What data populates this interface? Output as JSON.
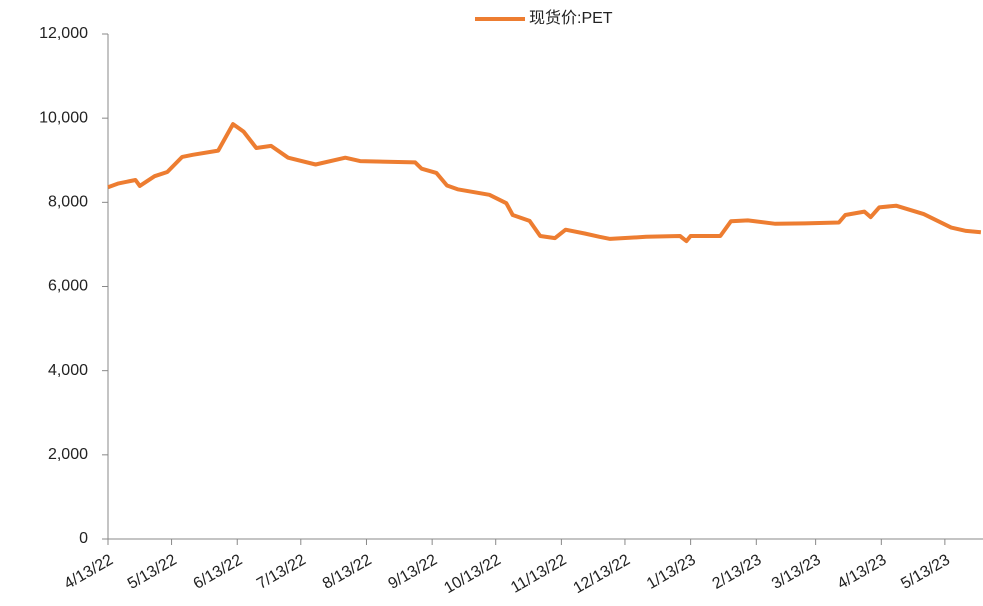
{
  "chart_data": {
    "type": "line",
    "x": [
      "2022-04-13",
      "2022-04-18",
      "2022-04-26",
      "2022-04-28",
      "2022-05-05",
      "2022-05-11",
      "2022-05-18",
      "2022-05-23",
      "2022-06-04",
      "2022-06-11",
      "2022-06-16",
      "2022-06-22",
      "2022-06-29",
      "2022-07-07",
      "2022-07-20",
      "2022-08-03",
      "2022-08-10",
      "2022-09-05",
      "2022-09-08",
      "2022-09-15",
      "2022-09-20",
      "2022-09-25",
      "2022-10-10",
      "2022-10-18",
      "2022-10-21",
      "2022-10-29",
      "2022-11-03",
      "2022-11-10",
      "2022-11-15",
      "2022-11-24",
      "2022-12-01",
      "2022-12-06",
      "2022-12-23",
      "2023-01-08",
      "2023-01-11",
      "2023-01-13",
      "2023-01-27",
      "2023-02-01",
      "2023-02-09",
      "2023-02-22",
      "2023-03-08",
      "2023-03-24",
      "2023-03-27",
      "2023-04-05",
      "2023-04-08",
      "2023-04-12",
      "2023-04-20",
      "2023-05-03",
      "2023-05-16",
      "2023-05-23",
      "2023-05-30"
    ],
    "series": [
      {
        "name": "现货价:PET",
        "color": "#ed7d31",
        "values": [
          8360,
          8450,
          8530,
          8390,
          8620,
          8720,
          9080,
          9130,
          9230,
          9860,
          9680,
          9290,
          9340,
          9060,
          8900,
          9060,
          8980,
          8950,
          8800,
          8700,
          8400,
          8310,
          8180,
          7980,
          7700,
          7560,
          7200,
          7150,
          7350,
          7260,
          7180,
          7130,
          7180,
          7200,
          7080,
          7200,
          7200,
          7550,
          7570,
          7490,
          7500,
          7520,
          7700,
          7780,
          7650,
          7880,
          7920,
          7720,
          7400,
          7320,
          7290
        ]
      }
    ],
    "xlim": [
      "2022-04-13",
      "2023-05-31"
    ],
    "xticks": [
      {
        "value": "2022-04-13",
        "label": "4/13/22"
      },
      {
        "value": "2022-05-13",
        "label": "5/13/22"
      },
      {
        "value": "2022-06-13",
        "label": "6/13/22"
      },
      {
        "value": "2022-07-13",
        "label": "7/13/22"
      },
      {
        "value": "2022-08-13",
        "label": "8/13/22"
      },
      {
        "value": "2022-09-13",
        "label": "9/13/22"
      },
      {
        "value": "2022-10-13",
        "label": "10/13/22"
      },
      {
        "value": "2022-11-13",
        "label": "11/13/22"
      },
      {
        "value": "2022-12-13",
        "label": "12/13/22"
      },
      {
        "value": "2023-01-13",
        "label": "1/13/23"
      },
      {
        "value": "2023-02-13",
        "label": "2/13/23"
      },
      {
        "value": "2023-03-13",
        "label": "3/13/23"
      },
      {
        "value": "2023-04-13",
        "label": "4/13/23"
      },
      {
        "value": "2023-05-13",
        "label": "5/13/23"
      }
    ],
    "ylim": [
      0,
      12000
    ],
    "yticks": [
      0,
      {
        "value": 2000,
        "label": "2,000"
      },
      {
        "value": 4000,
        "label": "4,000"
      },
      {
        "value": 6000,
        "label": "6,000"
      },
      {
        "value": 8000,
        "label": "8,000"
      },
      {
        "value": 10000,
        "label": "10,000"
      },
      {
        "value": 12000,
        "label": "12,000"
      }
    ],
    "legend": "top"
  }
}
